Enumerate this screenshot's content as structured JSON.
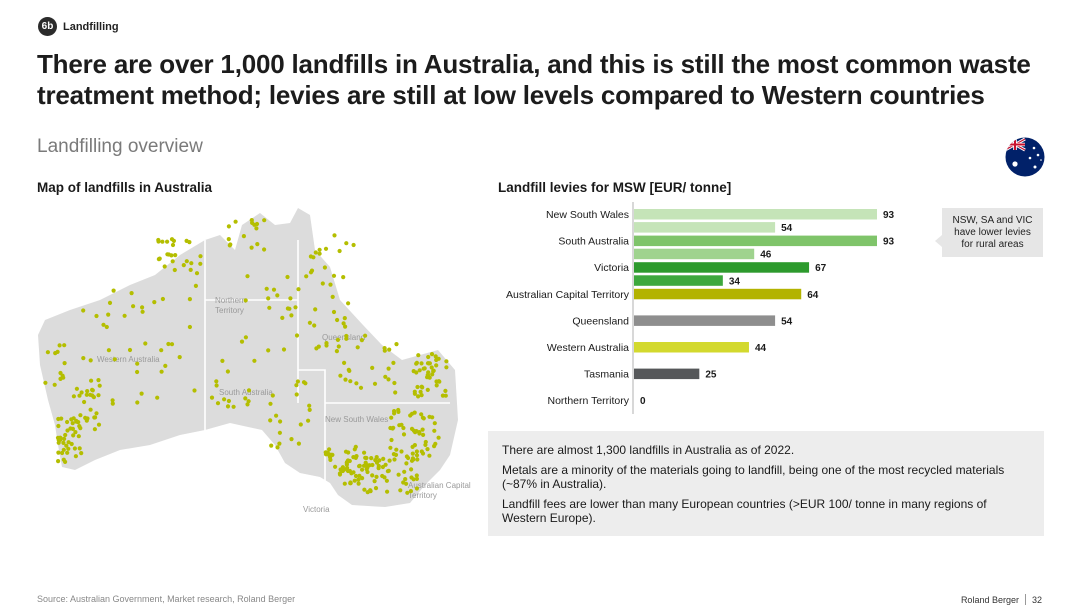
{
  "section": {
    "number": "6b",
    "label": "Landfilling"
  },
  "headline": "There are over 1,000 landfills in Australia, and this is still the most common waste treatment method; levies are still at low levels compared to Western countries",
  "subtitle": "Landfilling overview",
  "flag": {
    "icon": "australia-flag-icon"
  },
  "map": {
    "title": "Map of landfills in Australia",
    "regions": [
      "Western Australia",
      "Northern Territory",
      "South Australia",
      "Queensland",
      "New South Wales",
      "Victoria",
      "Australian Capital Territory"
    ],
    "colors": {
      "land": "#dcdcdc",
      "border": "#ffffff",
      "dot": "#b4be00"
    }
  },
  "chart_data": {
    "type": "bar",
    "orientation": "horizontal",
    "title": "Landfill levies for MSW [EUR/ tonne]",
    "categories": [
      "New South Wales",
      "South Australia",
      "Victoria",
      "Australian Capital Territory",
      "Queensland",
      "Western Australia",
      "Tasmania",
      "Northern Territory"
    ],
    "series": [
      {
        "values": [
          93,
          93,
          67,
          64,
          54,
          44,
          25,
          0
        ]
      },
      {
        "values": [
          54,
          46,
          34,
          null,
          null,
          null,
          null,
          null
        ]
      }
    ],
    "colors": {
      "New South Wales": [
        "#c5e4b8",
        "#c5e4b8"
      ],
      "South Australia": [
        "#7fc46a",
        "#9fd38e"
      ],
      "Victoria": [
        "#2d9a2d",
        "#3da83d"
      ],
      "Australian Capital Territory": [
        "#b3b300"
      ],
      "Queensland": [
        "#8e8e8e"
      ],
      "Western Australia": [
        "#d3d92e"
      ],
      "Tasmania": [
        "#555759"
      ],
      "Northern Territory": [
        "#555759"
      ]
    },
    "xlim": [
      0,
      93
    ],
    "grid": false,
    "legend": "none"
  },
  "callout": "NSW, SA and VIC have lower levies for rural areas",
  "notes": [
    "There are almost 1,300 landfills in Australia as of 2022.",
    "Metals are a minority of the materials going to landfill, being one of the most recycled materials (~87% in Australia).",
    "Landfill fees are lower than many European countries (>EUR 100/ tonne in many regions of Western Europe)."
  ],
  "footer": {
    "source": "Source: Australian Government, Market research, Roland Berger",
    "brand": "Roland Berger",
    "page": "32"
  }
}
